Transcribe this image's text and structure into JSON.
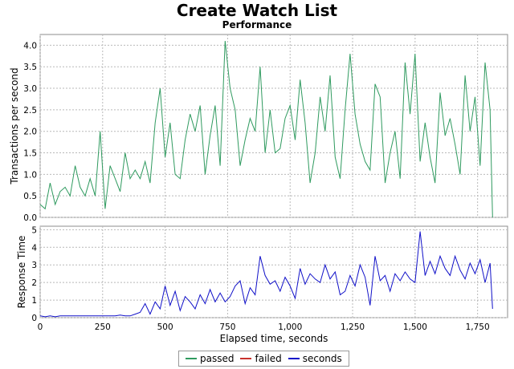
{
  "header": {
    "title": "Create Watch List",
    "subtitle": "Performance"
  },
  "colors": {
    "passed": "#2f9a5f",
    "failed": "#c8322d",
    "seconds": "#1010c8",
    "grid": "#b9b9b9"
  },
  "chart_data": [
    {
      "type": "line",
      "panel": "top",
      "ylabel": "Transactions per second",
      "xlim": [
        0,
        1870
      ],
      "ylim": [
        0,
        4.25
      ],
      "yticks": [
        "0.0",
        "0.5",
        "1.0",
        "1.5",
        "2.0",
        "2.5",
        "3.0",
        "3.5",
        "4.0"
      ],
      "grid": true,
      "series": [
        {
          "name": "passed",
          "x": [
            0,
            20,
            40,
            60,
            80,
            100,
            120,
            140,
            160,
            180,
            200,
            220,
            240,
            260,
            280,
            300,
            320,
            340,
            360,
            380,
            400,
            420,
            440,
            460,
            480,
            500,
            520,
            540,
            560,
            580,
            600,
            620,
            640,
            660,
            680,
            700,
            720,
            740,
            760,
            780,
            800,
            820,
            840,
            860,
            880,
            900,
            920,
            940,
            960,
            980,
            1000,
            1020,
            1040,
            1060,
            1080,
            1100,
            1120,
            1140,
            1160,
            1180,
            1200,
            1220,
            1240,
            1260,
            1280,
            1300,
            1320,
            1340,
            1360,
            1380,
            1400,
            1420,
            1440,
            1460,
            1480,
            1500,
            1520,
            1540,
            1560,
            1580,
            1600,
            1620,
            1640,
            1660,
            1680,
            1700,
            1720,
            1740,
            1760,
            1780,
            1800,
            1810
          ],
          "values": [
            0.3,
            0.2,
            0.8,
            0.3,
            0.6,
            0.7,
            0.5,
            1.2,
            0.7,
            0.5,
            0.9,
            0.5,
            2.0,
            0.2,
            1.2,
            0.9,
            0.6,
            1.5,
            0.9,
            1.1,
            0.9,
            1.3,
            0.8,
            2.2,
            3.0,
            1.4,
            2.2,
            1.0,
            0.9,
            1.8,
            2.4,
            2.0,
            2.6,
            1.0,
            1.9,
            2.6,
            1.2,
            4.1,
            3.0,
            2.5,
            1.2,
            1.8,
            2.3,
            2.0,
            3.5,
            1.5,
            2.5,
            1.5,
            1.6,
            2.3,
            2.6,
            1.8,
            3.2,
            2.2,
            0.8,
            1.5,
            2.8,
            2.0,
            3.3,
            1.4,
            0.9,
            2.5,
            3.8,
            2.4,
            1.7,
            1.3,
            1.1,
            3.1,
            2.8,
            0.8,
            1.5,
            2.0,
            0.9,
            3.6,
            2.4,
            3.8,
            1.3,
            2.2,
            1.4,
            0.8,
            2.9,
            1.9,
            2.3,
            1.7,
            1.0,
            3.3,
            2.0,
            2.8,
            1.2,
            3.6,
            2.5,
            0.0
          ]
        },
        {
          "name": "failed",
          "x": [],
          "values": []
        }
      ]
    },
    {
      "type": "line",
      "panel": "bottom",
      "xlabel": "Elapsed time, seconds",
      "ylabel": "Response Time",
      "xlim": [
        0,
        1870
      ],
      "ylim": [
        0,
        5.2
      ],
      "xticks": [
        "0",
        "250",
        "500",
        "750",
        "1,000",
        "1,250",
        "1,500",
        "1,750"
      ],
      "yticks": [
        "0",
        "1",
        "2",
        "3",
        "4",
        "5"
      ],
      "grid": true,
      "series": [
        {
          "name": "seconds",
          "x": [
            0,
            20,
            40,
            60,
            80,
            100,
            120,
            140,
            160,
            180,
            200,
            220,
            240,
            260,
            280,
            300,
            320,
            340,
            360,
            380,
            400,
            420,
            440,
            460,
            480,
            500,
            520,
            540,
            560,
            580,
            600,
            620,
            640,
            660,
            680,
            700,
            720,
            740,
            760,
            780,
            800,
            820,
            840,
            860,
            880,
            900,
            920,
            940,
            960,
            980,
            1000,
            1020,
            1040,
            1060,
            1080,
            1100,
            1120,
            1140,
            1160,
            1180,
            1200,
            1220,
            1240,
            1260,
            1280,
            1300,
            1320,
            1340,
            1360,
            1380,
            1400,
            1420,
            1440,
            1460,
            1480,
            1500,
            1520,
            1540,
            1560,
            1580,
            1600,
            1620,
            1640,
            1660,
            1680,
            1700,
            1720,
            1740,
            1760,
            1780,
            1800,
            1810
          ],
          "values": [
            0.1,
            0.05,
            0.1,
            0.05,
            0.1,
            0.1,
            0.1,
            0.1,
            0.1,
            0.1,
            0.1,
            0.1,
            0.1,
            0.1,
            0.1,
            0.1,
            0.15,
            0.1,
            0.1,
            0.2,
            0.3,
            0.8,
            0.2,
            0.9,
            0.5,
            1.8,
            0.7,
            1.5,
            0.4,
            1.2,
            0.9,
            0.5,
            1.3,
            0.8,
            1.6,
            0.9,
            1.4,
            0.9,
            1.2,
            1.8,
            2.1,
            0.8,
            1.7,
            1.3,
            3.5,
            2.4,
            1.9,
            2.1,
            1.5,
            2.3,
            1.8,
            1.1,
            2.8,
            1.9,
            2.5,
            2.2,
            2.0,
            3.0,
            2.2,
            2.6,
            1.3,
            1.5,
            2.4,
            1.8,
            3.0,
            2.3,
            0.7,
            3.5,
            2.1,
            2.4,
            1.5,
            2.5,
            2.1,
            2.6,
            2.2,
            2.0,
            4.9,
            2.4,
            3.2,
            2.5,
            3.5,
            2.8,
            2.4,
            3.5,
            2.7,
            2.2,
            3.1,
            2.5,
            3.3,
            2.0,
            3.1,
            0.5
          ]
        }
      ]
    }
  ],
  "legend": {
    "passed": "passed",
    "failed": "failed",
    "seconds": "seconds"
  }
}
